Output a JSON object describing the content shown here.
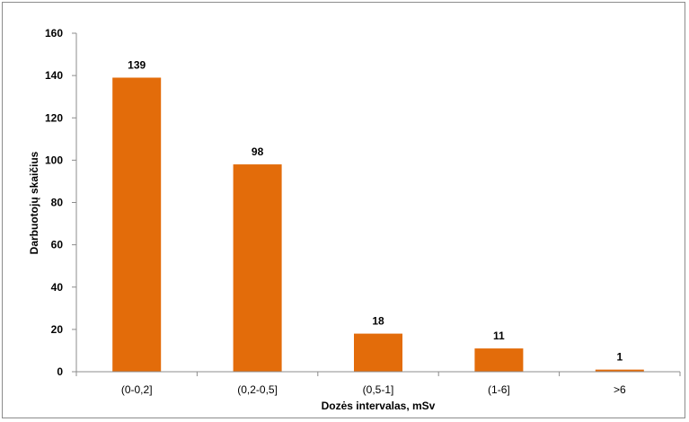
{
  "chart_data": {
    "type": "bar",
    "categories": [
      "(0-0,2]",
      "(0,2-0,5]",
      "(0,5-1]",
      "(1-6]",
      ">6"
    ],
    "values": [
      139,
      98,
      18,
      11,
      1
    ],
    "title": "",
    "xlabel": "Dozės intervalas, mSv",
    "ylabel": "Darbuotojų skaičius",
    "ylim": [
      0,
      160
    ],
    "yticks": [
      0,
      20,
      40,
      60,
      80,
      100,
      120,
      140,
      160
    ],
    "bar_color": "#E36C0A",
    "grid": false,
    "legend": "none",
    "data_labels": true
  }
}
